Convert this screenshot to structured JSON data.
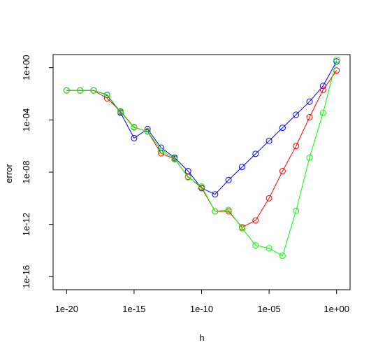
{
  "chart_data": {
    "type": "line",
    "title": "",
    "xlabel": "h",
    "ylabel": "error",
    "xscale": "log",
    "yscale": "log",
    "xlim": [
      1e-21,
      10.0
    ],
    "ylim": [
      1e-17,
      10.0
    ],
    "grid": false,
    "legend": "none",
    "x_ticks": [
      "1e-20",
      "1e-15",
      "1e-10",
      "1e-05",
      "1e+00"
    ],
    "y_ticks": [
      "1e-16",
      "1e-12",
      "1e-08",
      "1e-04",
      "1e+00"
    ],
    "marker": "open-circle",
    "x": [
      1e-20,
      1e-19,
      1e-18,
      1e-17,
      1e-16,
      1e-15,
      1e-14,
      1e-13,
      1e-12,
      1e-11,
      1e-10,
      1e-09,
      1e-08,
      1e-07,
      1e-06,
      1e-05,
      0.0001,
      0.001,
      0.01,
      0.1,
      1.0
    ],
    "series": [
      {
        "color": "#0000ff",
        "values": [
          0.018,
          0.018,
          0.018,
          0.008,
          0.00035,
          4e-06,
          2e-05,
          7.5e-07,
          1.3e-07,
          1.2e-08,
          6e-10,
          2e-10,
          2.5e-09,
          2.5e-08,
          2.5e-07,
          2.5e-06,
          2.5e-05,
          0.00025,
          0.0025,
          0.04,
          3
        ]
      },
      {
        "color": "#ff0000",
        "values": [
          0.018,
          0.018,
          0.018,
          0.0045,
          0.00045,
          2.8e-05,
          1.3e-05,
          2.8e-07,
          1e-07,
          4.5e-09,
          6.5e-10,
          1e-11,
          1e-11,
          6e-13,
          2e-12,
          1e-10,
          1.2e-08,
          1e-06,
          0.00016,
          0.02,
          0.6
        ]
      },
      {
        "color": "#00ff00",
        "values": [
          0.018,
          0.018,
          0.018,
          0.0085,
          0.0004,
          2.6e-05,
          1.4e-05,
          4.5e-07,
          1.1e-07,
          4e-09,
          8e-10,
          1e-11,
          1.3e-11,
          5e-13,
          2.5e-14,
          1.5e-14,
          4e-15,
          1.1e-11,
          1.3e-07,
          0.00035,
          4
        ]
      }
    ]
  }
}
